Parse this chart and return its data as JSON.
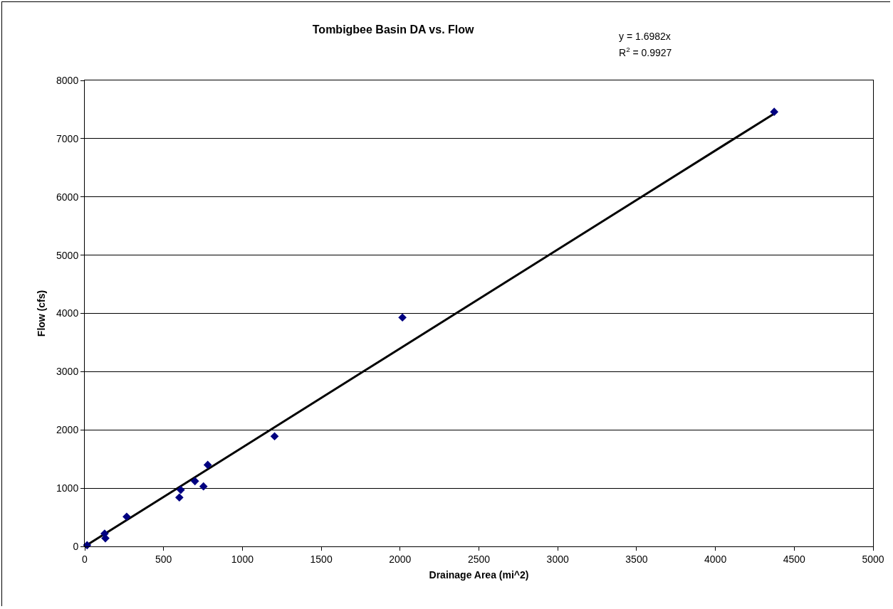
{
  "chart_data": {
    "type": "scatter",
    "title": "Tombigbee Basin DA vs. Flow",
    "xlabel": "Drainage Area (mi^2)",
    "ylabel": "Flow (cfs)",
    "annotations": [
      "y = 1.6982x",
      "R$^{2}$ = 0.9927"
    ],
    "series": [
      {
        "color": "#000080",
        "marker": "diamond",
        "x": [
          15,
          126,
          131,
          266,
          600,
          609,
          699,
          753,
          780,
          1204,
          2015,
          4373
        ],
        "values": [
          20,
          220,
          140,
          510,
          840,
          970,
          1120,
          1030,
          1400,
          1890,
          3930,
          7460
        ]
      },
      {
        "type": "line",
        "color": "#000000",
        "marker": "none",
        "line_style": "solid",
        "x": [
          0,
          4373
        ],
        "values": [
          0,
          7430
        ]
      }
    ],
    "xlim": [
      0,
      5000
    ],
    "xticks": [
      0,
      500,
      1000,
      1500,
      2000,
      2500,
      3000,
      3500,
      4000,
      4500,
      5000
    ],
    "ylim": [
      0,
      8000
    ],
    "yticks": [
      0,
      1000,
      2000,
      3000,
      4000,
      5000,
      6000,
      7000,
      8000
    ],
    "grid": "y"
  }
}
